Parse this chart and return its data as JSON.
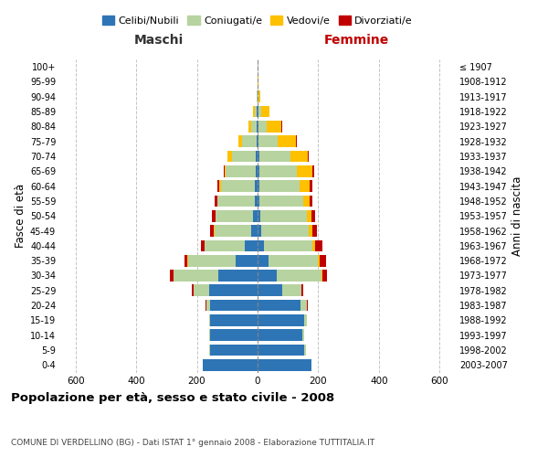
{
  "age_groups": [
    "100+",
    "95-99",
    "90-94",
    "85-89",
    "80-84",
    "75-79",
    "70-74",
    "65-69",
    "60-64",
    "55-59",
    "50-54",
    "45-49",
    "40-44",
    "35-39",
    "30-34",
    "25-29",
    "20-24",
    "15-19",
    "10-14",
    "5-9",
    "0-4"
  ],
  "birth_years": [
    "≤ 1907",
    "1908-1912",
    "1913-1917",
    "1918-1922",
    "1923-1927",
    "1928-1932",
    "1933-1937",
    "1938-1942",
    "1943-1947",
    "1948-1952",
    "1953-1957",
    "1958-1962",
    "1963-1967",
    "1968-1972",
    "1973-1977",
    "1978-1982",
    "1983-1987",
    "1988-1992",
    "1993-1997",
    "1998-2002",
    "2003-2007"
  ],
  "male": {
    "celibi": [
      0,
      0,
      0,
      2,
      3,
      4,
      6,
      6,
      9,
      9,
      15,
      20,
      42,
      72,
      130,
      160,
      155,
      155,
      155,
      155,
      182
    ],
    "coniugati": [
      0,
      0,
      2,
      8,
      18,
      47,
      78,
      98,
      112,
      122,
      122,
      122,
      132,
      158,
      148,
      52,
      15,
      5,
      3,
      3,
      0
    ],
    "vedovi": [
      0,
      0,
      0,
      5,
      8,
      12,
      15,
      5,
      5,
      2,
      2,
      2,
      2,
      2,
      0,
      0,
      0,
      0,
      0,
      0,
      0
    ],
    "divorziati": [
      0,
      0,
      0,
      0,
      0,
      0,
      0,
      3,
      6,
      8,
      12,
      12,
      10,
      10,
      10,
      5,
      2,
      0,
      0,
      0,
      0
    ]
  },
  "female": {
    "nubili": [
      0,
      0,
      0,
      2,
      3,
      3,
      5,
      5,
      6,
      6,
      9,
      12,
      22,
      36,
      62,
      82,
      142,
      152,
      147,
      152,
      178
    ],
    "coniugate": [
      0,
      0,
      3,
      10,
      28,
      62,
      103,
      123,
      133,
      143,
      153,
      158,
      158,
      163,
      148,
      62,
      22,
      9,
      6,
      6,
      0
    ],
    "vedove": [
      0,
      2,
      6,
      27,
      48,
      62,
      58,
      52,
      32,
      22,
      16,
      11,
      9,
      6,
      3,
      0,
      0,
      0,
      0,
      0,
      0
    ],
    "divorziate": [
      0,
      0,
      0,
      0,
      2,
      2,
      3,
      6,
      9,
      11,
      13,
      16,
      26,
      22,
      16,
      6,
      3,
      0,
      0,
      0,
      0
    ]
  },
  "colors": {
    "celibi": "#2e75b6",
    "coniugati": "#b7d3a0",
    "vedovi": "#ffc000",
    "divorziati": "#c00000"
  },
  "xlim": 650,
  "title": "Popolazione per età, sesso e stato civile - 2008",
  "subtitle": "COMUNE DI VERDELLINO (BG) - Dati ISTAT 1° gennaio 2008 - Elaborazione TUTTITALIA.IT",
  "ylabel_left": "Fasce di età",
  "ylabel_right": "Anni di nascita",
  "xlabel_left": "Maschi",
  "xlabel_right": "Femmine"
}
